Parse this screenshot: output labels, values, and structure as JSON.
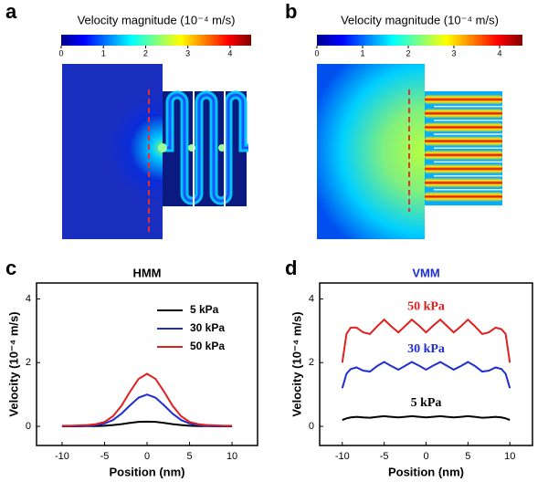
{
  "panel_labels": [
    "a",
    "b",
    "c",
    "d"
  ],
  "colorbars": [
    {
      "title": "Velocity magnitude (10⁻⁴ m/s)",
      "lim": [
        0,
        4.5
      ],
      "ticks": [
        0,
        1,
        2,
        3,
        4
      ]
    },
    {
      "title": "Velocity magnitude (10⁻⁴ m/s)",
      "lim": [
        0,
        4.5
      ],
      "ticks": [
        0,
        1,
        2,
        3,
        4
      ]
    }
  ],
  "chart_data": [
    {
      "type": "line",
      "title": "HMM",
      "title_color": "#000000",
      "xlabel": "Position (nm)",
      "ylabel": "Velocity (10⁻⁴ m/s)",
      "xlim": [
        -13,
        13
      ],
      "ylim": [
        -0.6,
        4.5
      ],
      "xticks": [
        -10,
        -5,
        0,
        5,
        10
      ],
      "yticks": [
        0,
        2,
        4
      ],
      "legend": "upper right",
      "x": [
        -10,
        -9,
        -8,
        -7,
        -6,
        -5,
        -4,
        -3,
        -2,
        -1,
        0,
        1,
        2,
        3,
        4,
        5,
        6,
        7,
        8,
        9,
        10
      ],
      "series": [
        {
          "name": "5 kPa",
          "color": "#000000",
          "values": [
            0,
            0,
            0,
            0.01,
            0.01,
            0.02,
            0.04,
            0.07,
            0.11,
            0.14,
            0.15,
            0.14,
            0.11,
            0.07,
            0.04,
            0.02,
            0.01,
            0.01,
            0,
            0,
            0
          ]
        },
        {
          "name": "30 kPa",
          "color": "#1f2fd0",
          "values": [
            0.01,
            0.01,
            0.01,
            0.02,
            0.04,
            0.09,
            0.2,
            0.4,
            0.66,
            0.9,
            1.0,
            0.9,
            0.66,
            0.4,
            0.2,
            0.09,
            0.04,
            0.02,
            0.01,
            0.01,
            0.01
          ]
        },
        {
          "name": "50 kPa",
          "color": "#e0201f",
          "values": [
            0.02,
            0.02,
            0.03,
            0.04,
            0.07,
            0.14,
            0.32,
            0.65,
            1.09,
            1.49,
            1.65,
            1.49,
            1.09,
            0.65,
            0.32,
            0.14,
            0.07,
            0.04,
            0.03,
            0.02,
            0.02
          ]
        }
      ]
    },
    {
      "type": "line",
      "title": "VMM",
      "title_color": "#1f2fd0",
      "xlabel": "Position (nm)",
      "ylabel": "Velocity (10⁻⁴ m/s)",
      "xlim": [
        -12.7,
        12.7
      ],
      "ylim": [
        -0.6,
        4.5
      ],
      "xticks": [
        -10,
        -5,
        0,
        5,
        10
      ],
      "yticks": [
        0,
        2,
        4
      ],
      "legend": "inline",
      "x": [
        -10,
        -9.5,
        -9,
        -8.3,
        -7.5,
        -6.7,
        -5.8,
        -5,
        -4.2,
        -3.3,
        -2.5,
        -1.7,
        -0.8,
        0,
        0.8,
        1.7,
        2.5,
        3.3,
        4.2,
        5,
        5.8,
        6.7,
        7.5,
        8.3,
        9,
        9.5,
        10
      ],
      "series": [
        {
          "name": "5 kPa",
          "color": "#000000",
          "values": [
            0.2,
            0.25,
            0.28,
            0.3,
            0.28,
            0.27,
            0.3,
            0.32,
            0.3,
            0.28,
            0.3,
            0.32,
            0.3,
            0.28,
            0.3,
            0.32,
            0.3,
            0.28,
            0.3,
            0.32,
            0.3,
            0.27,
            0.28,
            0.3,
            0.28,
            0.25,
            0.2
          ]
        },
        {
          "name": "30 kPa",
          "color": "#1f2fd0",
          "values": [
            1.2,
            1.65,
            1.8,
            1.85,
            1.75,
            1.72,
            1.9,
            2.02,
            1.9,
            1.78,
            1.9,
            2.02,
            1.9,
            1.78,
            1.9,
            2.02,
            1.9,
            1.78,
            1.9,
            2.02,
            1.9,
            1.72,
            1.75,
            1.85,
            1.8,
            1.65,
            1.2
          ]
        },
        {
          "name": "50 kPa",
          "color": "#e0201f",
          "values": [
            2.0,
            2.9,
            3.1,
            3.1,
            2.95,
            2.9,
            3.15,
            3.35,
            3.15,
            2.95,
            3.15,
            3.35,
            3.15,
            2.95,
            3.15,
            3.35,
            3.15,
            2.95,
            3.15,
            3.35,
            3.15,
            2.9,
            2.95,
            3.1,
            3.05,
            2.9,
            2.0
          ]
        }
      ]
    }
  ]
}
